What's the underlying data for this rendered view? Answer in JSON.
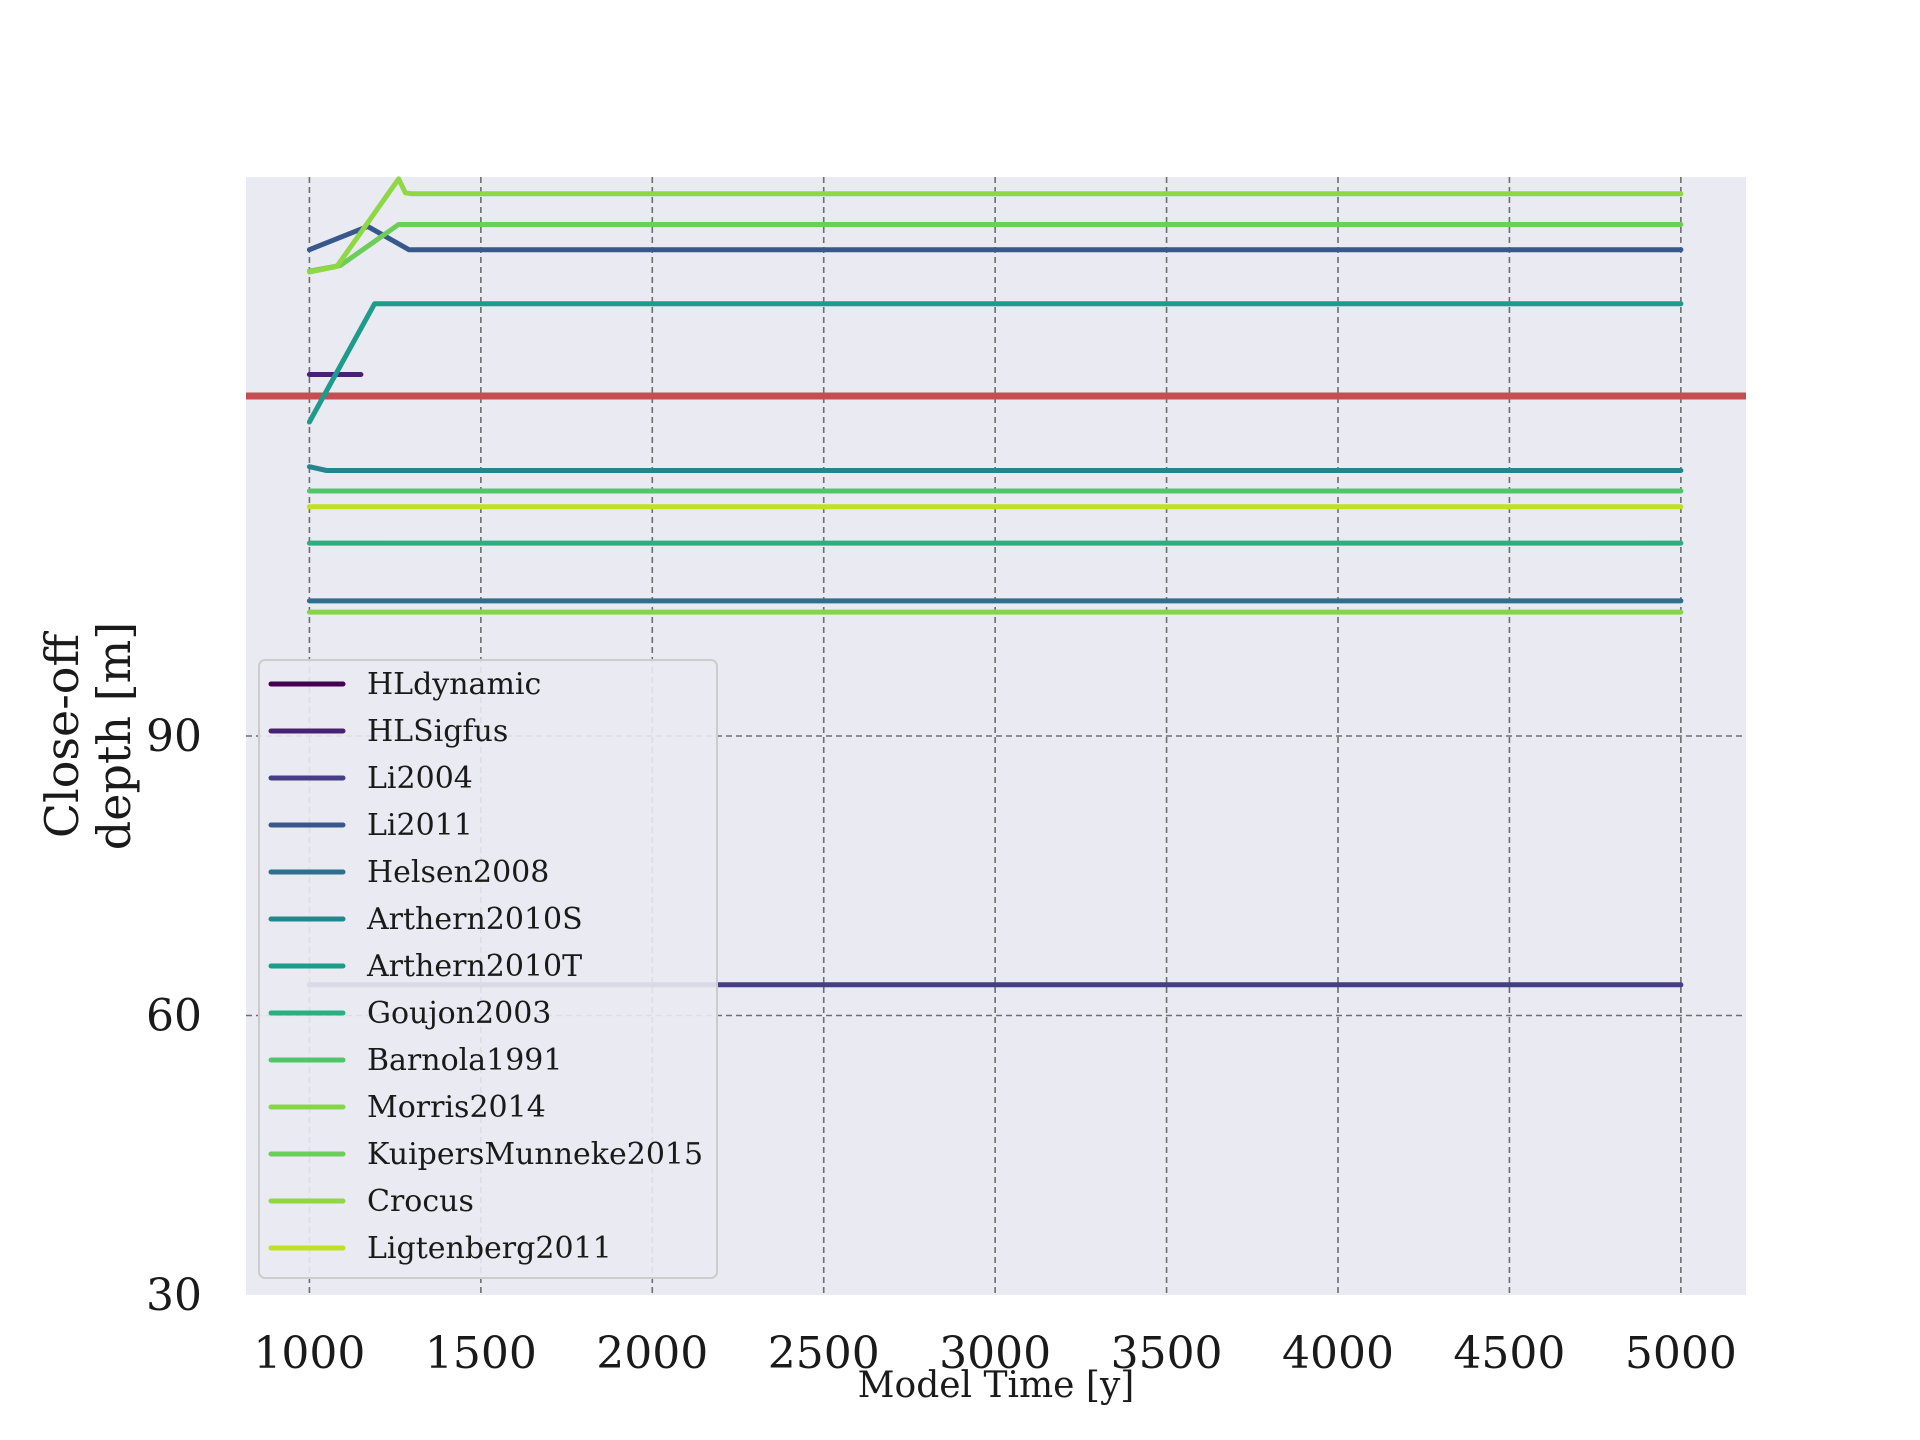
{
  "chart_data": {
    "type": "line",
    "title": "",
    "xlabel": "Model Time [y]",
    "ylabel_lines": [
      "Close-off",
      "depth [m]"
    ],
    "xlim": [
      815,
      5190
    ],
    "ylim": [
      30,
      150
    ],
    "xticks": [
      1000,
      1500,
      2000,
      2500,
      3000,
      3500,
      4000,
      4500,
      5000
    ],
    "yticks": [
      30,
      60,
      90
    ],
    "grid": true,
    "legend_position": "lower-left",
    "reference_line": {
      "y": 126.5,
      "color": "#c44e52"
    },
    "series": [
      {
        "name": "HLdynamic",
        "color": "#440154",
        "points": []
      },
      {
        "name": "HLSigfus",
        "color": "#482173",
        "points": [
          [
            1000,
            128.8
          ],
          [
            1150,
            128.8
          ]
        ]
      },
      {
        "name": "Li2004",
        "color": "#433e85",
        "points": [
          [
            1000,
            63.3
          ],
          [
            5000,
            63.3
          ]
        ]
      },
      {
        "name": "Li2011",
        "color": "#38588c",
        "points": [
          [
            1000,
            142.2
          ],
          [
            1170,
            144.7
          ],
          [
            1290,
            142.2
          ],
          [
            5000,
            142.2
          ]
        ]
      },
      {
        "name": "Helsen2008",
        "color": "#2d708e",
        "points": [
          [
            1000,
            104.5
          ],
          [
            5000,
            104.5
          ]
        ]
      },
      {
        "name": "Arthern2010S",
        "color": "#25858e",
        "points": [
          [
            1000,
            118.9
          ],
          [
            1050,
            118.5
          ],
          [
            5000,
            118.5
          ]
        ]
      },
      {
        "name": "Arthern2010T",
        "color": "#1e9b8a",
        "points": [
          [
            1000,
            123.7
          ],
          [
            1190,
            136.4
          ],
          [
            5000,
            136.4
          ]
        ]
      },
      {
        "name": "Goujon2003",
        "color": "#2ab07f",
        "points": [
          [
            1000,
            110.7
          ],
          [
            5000,
            110.7
          ]
        ]
      },
      {
        "name": "Barnola1991",
        "color": "#52c569",
        "points": [
          [
            1000,
            116.3
          ],
          [
            5000,
            116.3
          ]
        ]
      },
      {
        "name": "Morris2014",
        "color": "#86d549",
        "points": [
          [
            1000,
            103.3
          ],
          [
            5000,
            103.3
          ]
        ]
      },
      {
        "name": "KuipersMunneke2015",
        "color": "#6ccd5a",
        "points": [
          [
            1000,
            139.9
          ],
          [
            1090,
            140.5
          ],
          [
            1260,
            144.9
          ],
          [
            5000,
            144.9
          ]
        ]
      },
      {
        "name": "Crocus",
        "color": "#8fd744",
        "points": [
          [
            1000,
            139.8
          ],
          [
            1080,
            140.4
          ],
          [
            1260,
            149.8
          ],
          [
            1280,
            148.3
          ],
          [
            1300,
            148.2
          ],
          [
            5000,
            148.2
          ]
        ]
      },
      {
        "name": "Ligtenberg2011",
        "color": "#c2df23",
        "points": [
          [
            1000,
            114.6
          ],
          [
            5000,
            114.6
          ]
        ]
      }
    ]
  }
}
